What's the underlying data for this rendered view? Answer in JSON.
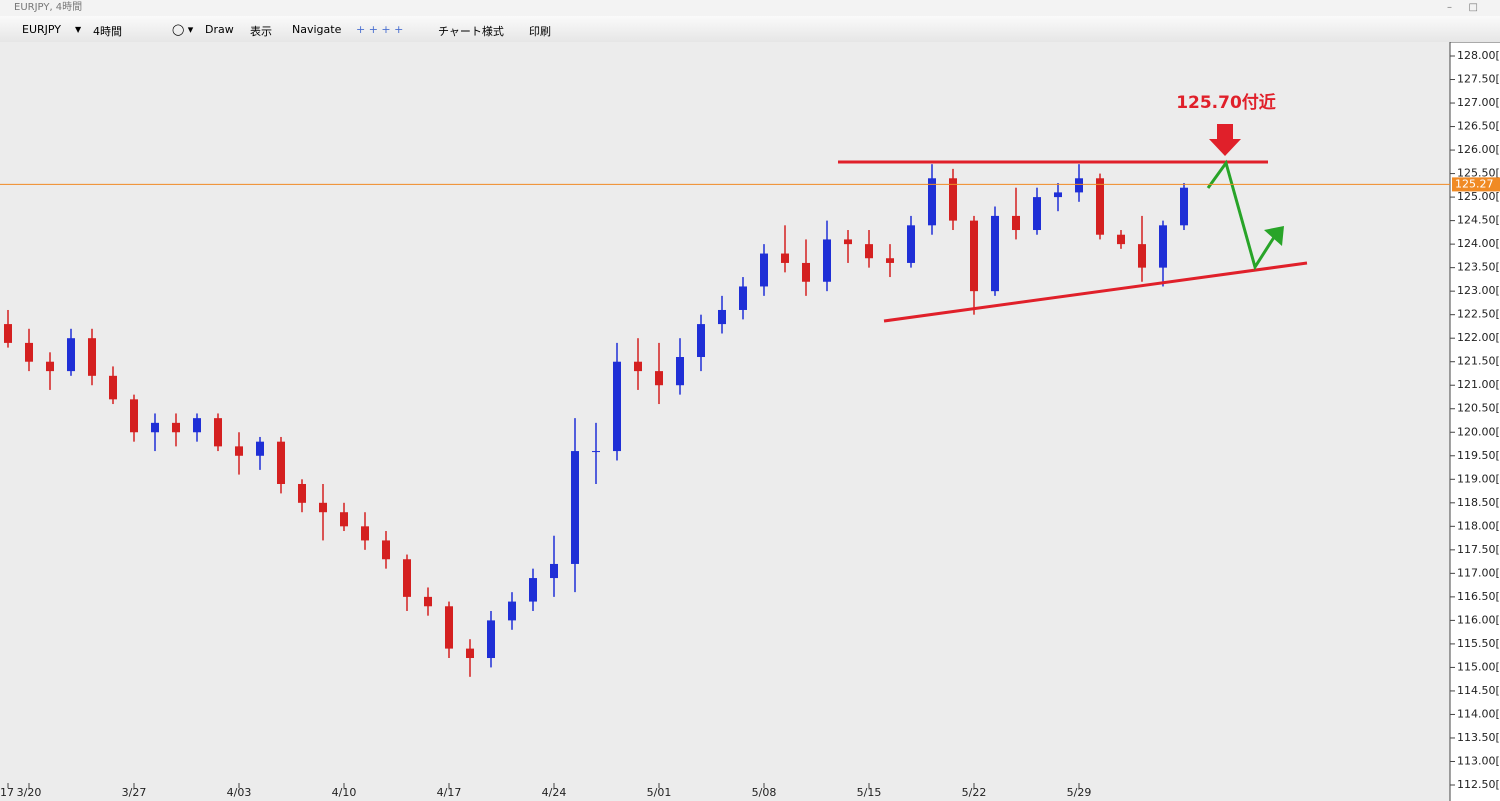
{
  "window_title": "EURJPY, 4時間",
  "toolbar": [
    "EURJPY",
    "4時間",
    "Draw",
    "表示",
    "Navigate",
    "チャート様式",
    "印刷"
  ],
  "annotation": "125.70付近",
  "chart_data": {
    "type": "candlestick",
    "categories": [
      "17",
      "3/20",
      null,
      null,
      null,
      null,
      "3/27",
      null,
      null,
      null,
      null,
      "4/03",
      null,
      null,
      null,
      null,
      "4/10",
      null,
      null,
      null,
      null,
      "4/17",
      null,
      null,
      null,
      null,
      "4/24",
      null,
      null,
      null,
      null,
      "5/01",
      null,
      null,
      null,
      null,
      "5/08",
      null,
      null,
      null,
      null,
      "5/15",
      null,
      null,
      null,
      null,
      "5/22",
      null,
      null,
      null,
      null,
      "5/29",
      null,
      null,
      null,
      null,
      null
    ],
    "open": [
      122.3,
      121.9,
      121.5,
      121.3,
      122.0,
      121.2,
      120.7,
      120.0,
      120.2,
      120.0,
      120.3,
      119.7,
      119.5,
      119.8,
      118.9,
      118.5,
      118.3,
      118.0,
      117.7,
      117.3,
      116.5,
      116.3,
      115.4,
      115.2,
      116.0,
      116.4,
      116.9,
      117.2,
      119.6,
      119.6,
      121.5,
      121.3,
      121.0,
      121.6,
      122.3,
      122.6,
      123.1,
      123.8,
      123.6,
      123.2,
      124.1,
      124.0,
      123.7,
      123.6,
      124.4,
      125.4,
      124.5,
      123.0,
      124.6,
      124.3,
      125.0,
      125.1,
      125.4,
      124.2,
      124.0,
      123.5,
      124.4
    ],
    "high": [
      122.6,
      122.2,
      121.7,
      122.2,
      122.2,
      121.4,
      120.8,
      120.4,
      120.4,
      120.4,
      120.4,
      120.0,
      119.9,
      119.9,
      119.0,
      118.9,
      118.5,
      118.3,
      117.9,
      117.4,
      116.7,
      116.4,
      115.6,
      116.2,
      116.6,
      117.1,
      117.8,
      120.3,
      120.2,
      121.9,
      122.0,
      121.9,
      122.0,
      122.5,
      122.9,
      123.3,
      124.0,
      124.4,
      124.1,
      124.5,
      124.3,
      124.3,
      124.0,
      124.6,
      125.7,
      125.6,
      124.6,
      124.8,
      125.2,
      125.2,
      125.3,
      125.7,
      125.5,
      124.3,
      124.6,
      124.5,
      125.3
    ],
    "low": [
      121.8,
      121.3,
      120.9,
      121.2,
      121.0,
      120.6,
      119.8,
      119.6,
      119.7,
      119.8,
      119.6,
      119.1,
      119.2,
      118.7,
      118.3,
      117.7,
      117.9,
      117.5,
      117.1,
      116.2,
      116.1,
      115.2,
      114.8,
      115.0,
      115.8,
      116.2,
      116.5,
      116.6,
      118.9,
      119.4,
      120.9,
      120.6,
      120.8,
      121.3,
      122.1,
      122.4,
      122.9,
      123.4,
      122.9,
      123.0,
      123.6,
      123.5,
      123.3,
      123.5,
      124.2,
      124.3,
      122.5,
      122.9,
      124.1,
      124.2,
      124.7,
      124.9,
      124.1,
      123.9,
      123.2,
      123.1,
      124.3
    ],
    "close": [
      121.9,
      121.5,
      121.3,
      122.0,
      121.2,
      120.7,
      120.0,
      120.2,
      120.0,
      120.3,
      119.7,
      119.5,
      119.8,
      118.9,
      118.5,
      118.3,
      118.0,
      117.7,
      117.3,
      116.5,
      116.3,
      115.4,
      115.2,
      116.0,
      116.4,
      116.9,
      117.2,
      119.6,
      119.6,
      121.5,
      121.3,
      121.0,
      121.6,
      122.3,
      122.6,
      123.1,
      123.8,
      123.6,
      123.2,
      124.1,
      124.0,
      123.7,
      123.6,
      124.4,
      125.4,
      124.5,
      123.0,
      124.6,
      124.3,
      125.0,
      125.1,
      125.4,
      124.2,
      124.0,
      123.5,
      124.4,
      125.2
    ],
    "up_color": "#1f2fd6",
    "down_color": "#d42020",
    "current_price": 125.27,
    "current_price_color": "#f08a24",
    "ylim": [
      112.5,
      128
    ],
    "yticks": [
      {
        "value": 112.5,
        "label": "112.50["
      },
      {
        "value": 113,
        "label": "113.00["
      },
      {
        "value": 113.5,
        "label": "113.50["
      },
      {
        "value": 114,
        "label": "114.00["
      },
      {
        "value": 114.5,
        "label": "114.50["
      },
      {
        "value": 115,
        "label": "115.00["
      },
      {
        "value": 115.5,
        "label": "115.50["
      },
      {
        "value": 116,
        "label": "116.00["
      },
      {
        "value": 116.5,
        "label": "116.50["
      },
      {
        "value": 117,
        "label": "117.00["
      },
      {
        "value": 117.5,
        "label": "117.50["
      },
      {
        "value": 118,
        "label": "118.00["
      },
      {
        "value": 118.5,
        "label": "118.50["
      },
      {
        "value": 119,
        "label": "119.00["
      },
      {
        "value": 119.5,
        "label": "119.50["
      },
      {
        "value": 120,
        "label": "120.00["
      },
      {
        "value": 120.5,
        "label": "120.50["
      },
      {
        "value": 121,
        "label": "121.00["
      },
      {
        "value": 121.5,
        "label": "121.50["
      },
      {
        "value": 122,
        "label": "122.00["
      },
      {
        "value": 122.5,
        "label": "122.50["
      },
      {
        "value": 123,
        "label": "123.00["
      },
      {
        "value": 123.5,
        "label": "123.50["
      },
      {
        "value": 124,
        "label": "124.00["
      },
      {
        "value": 124.5,
        "label": "124.50["
      },
      {
        "value": 125,
        "label": "125.00["
      },
      {
        "value": 125.5,
        "label": "125.50["
      },
      {
        "value": 126,
        "label": "126.00["
      },
      {
        "value": 126.5,
        "label": "126.50["
      },
      {
        "value": 127,
        "label": "127.00["
      },
      {
        "value": 127.5,
        "label": "127.50["
      },
      {
        "value": 128,
        "label": "128.00["
      }
    ],
    "grid": false
  }
}
